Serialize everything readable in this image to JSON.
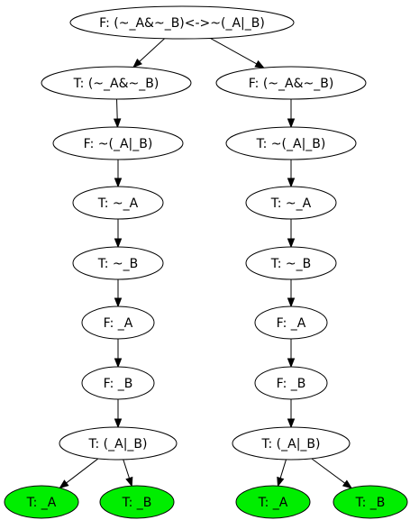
{
  "colors": {
    "background": "#ffffff",
    "node_fill": "#ffffff",
    "leaf_fill": "#00ee00",
    "stroke": "#000000",
    "text": "#000000"
  },
  "tree": {
    "nodes": [
      {
        "id": "root",
        "label": "F: (~_A&~_B)<->~(_A|_B)",
        "leaf": false
      },
      {
        "id": "l1",
        "label": "T: (~_A&~_B)",
        "leaf": false
      },
      {
        "id": "l2",
        "label": "F: ~(_A|_B)",
        "leaf": false
      },
      {
        "id": "l3",
        "label": "T: ~_A",
        "leaf": false
      },
      {
        "id": "l4",
        "label": "T: ~_B",
        "leaf": false
      },
      {
        "id": "l5",
        "label": "F: _A",
        "leaf": false
      },
      {
        "id": "l6",
        "label": "F: _B",
        "leaf": false
      },
      {
        "id": "l7",
        "label": "T: (_A|_B)",
        "leaf": false
      },
      {
        "id": "l8a",
        "label": "T: _A",
        "leaf": true
      },
      {
        "id": "l8b",
        "label": "T: _B",
        "leaf": true
      },
      {
        "id": "r1",
        "label": "F: (~_A&~_B)",
        "leaf": false
      },
      {
        "id": "r2",
        "label": "T: ~(_A|_B)",
        "leaf": false
      },
      {
        "id": "r3",
        "label": "T: ~_A",
        "leaf": false
      },
      {
        "id": "r4",
        "label": "T: ~_B",
        "leaf": false
      },
      {
        "id": "r5",
        "label": "F: _A",
        "leaf": false
      },
      {
        "id": "r6",
        "label": "F: _B",
        "leaf": false
      },
      {
        "id": "r7",
        "label": "T: (_A|_B)",
        "leaf": false
      },
      {
        "id": "r8a",
        "label": "T: _A",
        "leaf": true
      },
      {
        "id": "r8b",
        "label": "T: _B",
        "leaf": true
      }
    ],
    "edges": [
      {
        "from": "root",
        "to": "l1"
      },
      {
        "from": "root",
        "to": "r1"
      },
      {
        "from": "l1",
        "to": "l2"
      },
      {
        "from": "l2",
        "to": "l3"
      },
      {
        "from": "l3",
        "to": "l4"
      },
      {
        "from": "l4",
        "to": "l5"
      },
      {
        "from": "l5",
        "to": "l6"
      },
      {
        "from": "l6",
        "to": "l7"
      },
      {
        "from": "l7",
        "to": "l8a"
      },
      {
        "from": "l7",
        "to": "l8b"
      },
      {
        "from": "r1",
        "to": "r2"
      },
      {
        "from": "r2",
        "to": "r3"
      },
      {
        "from": "r3",
        "to": "r4"
      },
      {
        "from": "r4",
        "to": "r5"
      },
      {
        "from": "r5",
        "to": "r6"
      },
      {
        "from": "r6",
        "to": "r7"
      },
      {
        "from": "r7",
        "to": "r8a"
      },
      {
        "from": "r7",
        "to": "r8b"
      }
    ]
  }
}
